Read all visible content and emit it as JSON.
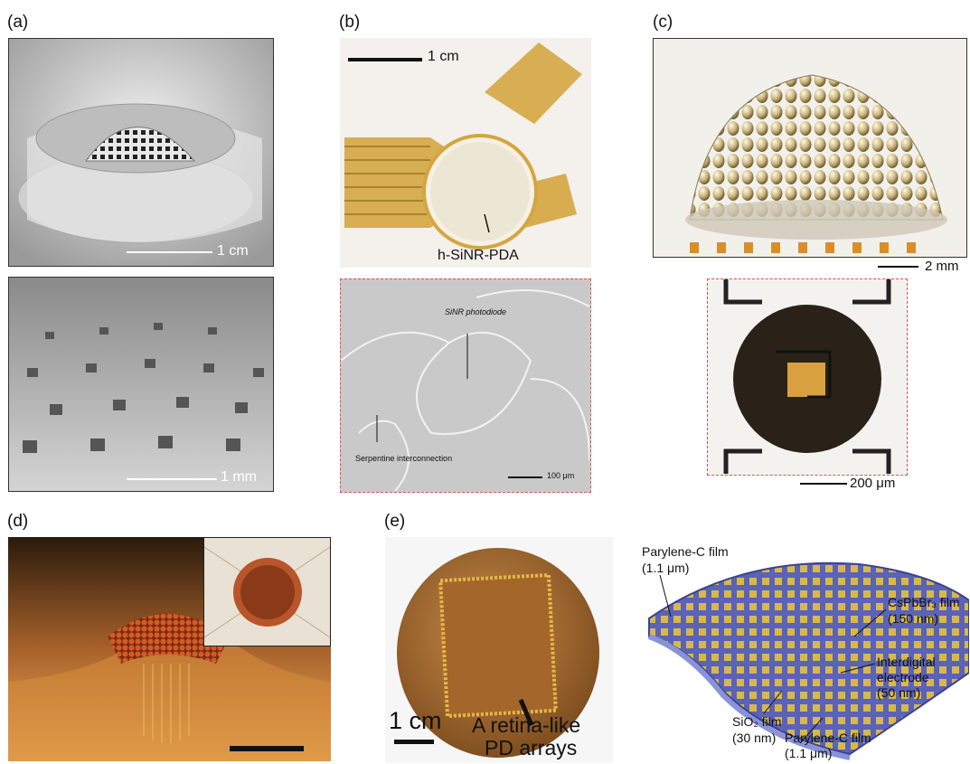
{
  "panels": {
    "a": {
      "label": "(a)",
      "top_scale": "1 cm",
      "bottom_scale": "1 mm"
    },
    "b": {
      "label": "(b)",
      "top_scale": "1 cm",
      "device_label": "h-SiNR-PDA",
      "sem_label_1": "SiNR photodiode",
      "sem_label_2": "Serpentine interconnection",
      "sem_scale": "100 μm"
    },
    "c": {
      "label": "(c)",
      "top_scale": "2 mm",
      "bottom_scale": "200 μm"
    },
    "d": {
      "label": "(d)"
    },
    "e": {
      "label": "(e)",
      "photo_scale": "1 cm",
      "photo_caption_1": "A retina-like",
      "photo_caption_2": "PD arrays",
      "layers": {
        "parylene_top_1": "Parylene-C film",
        "parylene_top_2": "(1.1 μm)",
        "cspbbr_1": "CsPbBr₃ film",
        "cspbbr_2": "(150 nm)",
        "interdigital_1": "Interdigital",
        "interdigital_2": "electrode",
        "interdigital_3": "(50 nm)",
        "sio2_1": "SiO₂ film",
        "sio2_2": "(30 nm)",
        "parylene_bottom_1": "Parylene-C film",
        "parylene_bottom_2": "(1.1 μm)"
      }
    }
  },
  "colors": {
    "dashed_border": "#e05050",
    "gold": "#d9a83a",
    "blue_film": "#5a63b8"
  }
}
